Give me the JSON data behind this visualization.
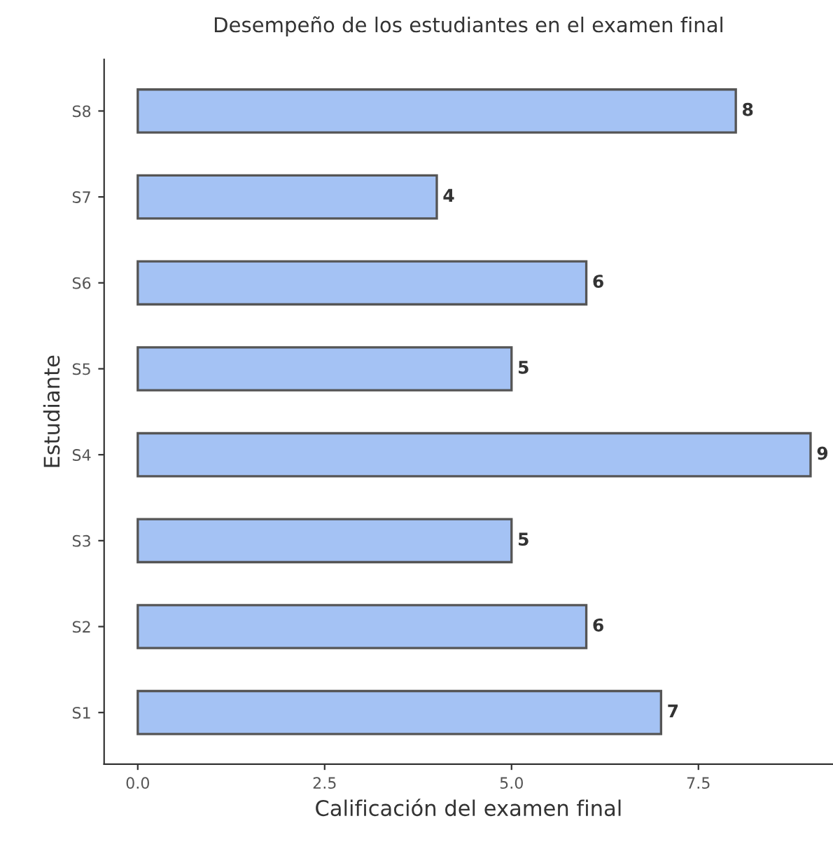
{
  "chart_data": {
    "type": "bar",
    "orientation": "horizontal",
    "title": "Desempeño de los estudiantes en el examen final",
    "xlabel": "Calificación del examen final",
    "ylabel": "Estudiante",
    "categories": [
      "S8",
      "S7",
      "S6",
      "S5",
      "S4",
      "S3",
      "S2",
      "S1"
    ],
    "values": [
      8,
      4,
      6,
      5,
      9,
      5,
      6,
      7
    ],
    "color": "#a4c2f4",
    "xlim": [
      -0.45,
      9.3
    ],
    "xticks": [
      {
        "value": 0,
        "label": "0.0"
      },
      {
        "value": 2.5,
        "label": "2.5"
      },
      {
        "value": 5,
        "label": "5.0"
      },
      {
        "value": 7.5,
        "label": "7.5"
      }
    ],
    "data_labels": true,
    "grid": false,
    "legend": false
  }
}
